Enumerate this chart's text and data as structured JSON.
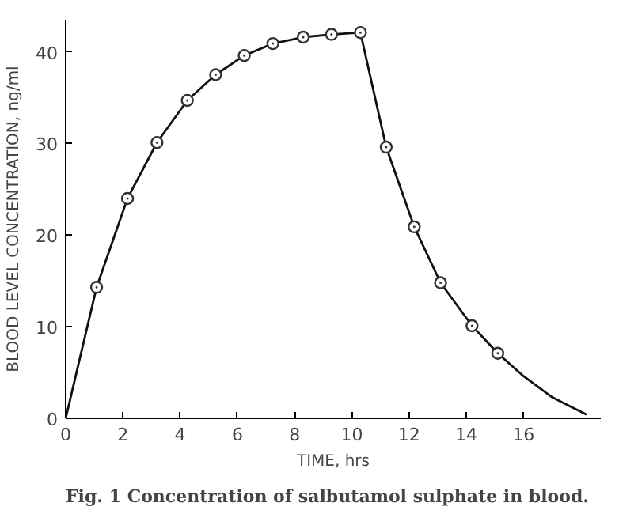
{
  "chart_data": {
    "type": "line",
    "xlabel": "TIME, hrs",
    "ylabel": "BLOOD LEVEL CONCENTRATION, ng/ml",
    "annotations": [
      "Fig. 1 Concentration of salbutamol sulphate in blood."
    ],
    "xlim": [
      0,
      18.7
    ],
    "ylim": [
      0,
      43.5
    ],
    "xticks": [
      0,
      2,
      4,
      6,
      8,
      10,
      12,
      14,
      16
    ],
    "yticks": [
      0,
      10,
      20,
      30,
      40
    ],
    "grid": false,
    "series": [
      {
        "color": "#111111",
        "marker": "none",
        "x": [
          0,
          1.08,
          2.16,
          3.19,
          4.25,
          5.24,
          6.24,
          7.24,
          8.3,
          9.29,
          10.3,
          11.2,
          12.18,
          13.1,
          14.2,
          15.1,
          16.0,
          17.0,
          18.2
        ],
        "values": [
          0,
          14.3,
          24.0,
          30.1,
          34.7,
          37.5,
          39.6,
          40.9,
          41.6,
          41.9,
          42.1,
          29.6,
          20.9,
          14.8,
          10.1,
          7.1,
          4.6,
          2.3,
          0.4
        ]
      },
      {
        "type": "scatter",
        "color": "#333333",
        "marker": "circle",
        "x": [
          1.08,
          2.16,
          3.19,
          4.25,
          5.24,
          6.24,
          7.24,
          8.3,
          9.29,
          10.3,
          11.2,
          12.18,
          13.1,
          14.2,
          15.1
        ],
        "values": [
          14.3,
          24.0,
          30.1,
          34.7,
          37.5,
          39.6,
          40.9,
          41.6,
          41.9,
          42.1,
          29.6,
          20.9,
          14.8,
          10.1,
          7.1
        ]
      }
    ]
  }
}
